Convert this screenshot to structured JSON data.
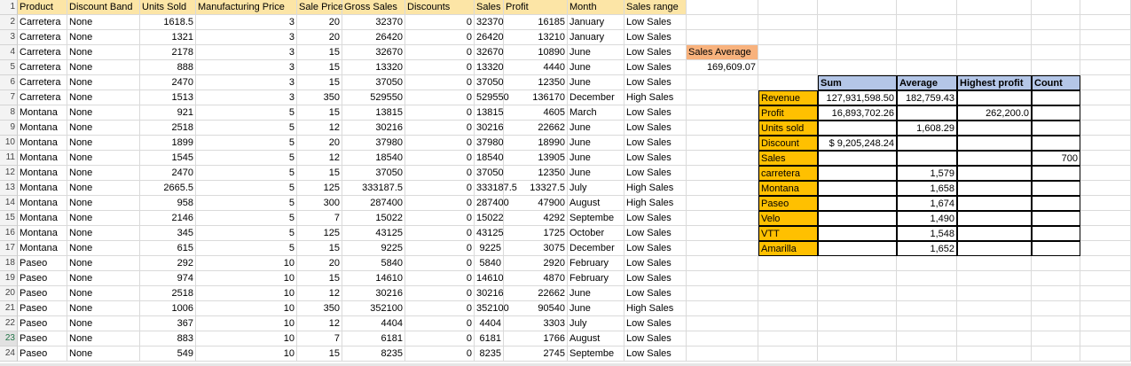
{
  "sheet": {
    "rows": [
      {
        "n": "1",
        "cells": [
          "Product",
          "Discount Band",
          "Units Sold",
          "Manufacturing Price",
          "Sale Price",
          "Gross Sales",
          "Discounts",
          "Sales",
          "Profit",
          "Month",
          "Sales range"
        ]
      },
      {
        "n": "2",
        "cells": [
          "Carretera",
          "None",
          "1618.5",
          "3",
          "20",
          "32370",
          "0",
          "32370",
          "16185",
          "January",
          "Low Sales"
        ]
      },
      {
        "n": "3",
        "cells": [
          "Carretera",
          "None",
          "1321",
          "3",
          "20",
          "26420",
          "0",
          "26420",
          "13210",
          "January",
          "Low Sales"
        ]
      },
      {
        "n": "4",
        "cells": [
          "Carretera",
          "None",
          "2178",
          "3",
          "15",
          "32670",
          "0",
          "32670",
          "10890",
          "June",
          "Low Sales"
        ]
      },
      {
        "n": "5",
        "cells": [
          "Carretera",
          "None",
          "888",
          "3",
          "15",
          "13320",
          "0",
          "13320",
          "4440",
          "June",
          "Low Sales"
        ]
      },
      {
        "n": "6",
        "cells": [
          "Carretera",
          "None",
          "2470",
          "3",
          "15",
          "37050",
          "0",
          "37050",
          "12350",
          "June",
          "Low Sales"
        ]
      },
      {
        "n": "7",
        "cells": [
          "Carretera",
          "None",
          "1513",
          "3",
          "350",
          "529550",
          "0",
          "529550",
          "136170",
          "December",
          "High Sales"
        ]
      },
      {
        "n": "8",
        "cells": [
          "Montana",
          "None",
          "921",
          "5",
          "15",
          "13815",
          "0",
          "13815",
          "4605",
          "March",
          "Low Sales"
        ]
      },
      {
        "n": "9",
        "cells": [
          "Montana",
          "None",
          "2518",
          "5",
          "12",
          "30216",
          "0",
          "30216",
          "22662",
          "June",
          "Low Sales"
        ]
      },
      {
        "n": "10",
        "cells": [
          "Montana",
          "None",
          "1899",
          "5",
          "20",
          "37980",
          "0",
          "37980",
          "18990",
          "June",
          "Low Sales"
        ]
      },
      {
        "n": "11",
        "cells": [
          "Montana",
          "None",
          "1545",
          "5",
          "12",
          "18540",
          "0",
          "18540",
          "13905",
          "June",
          "Low Sales"
        ]
      },
      {
        "n": "12",
        "cells": [
          "Montana",
          "None",
          "2470",
          "5",
          "15",
          "37050",
          "0",
          "37050",
          "12350",
          "June",
          "Low Sales"
        ]
      },
      {
        "n": "13",
        "cells": [
          "Montana",
          "None",
          "2665.5",
          "5",
          "125",
          "333187.5",
          "0",
          "333187.5",
          "13327.5",
          "July",
          "High Sales"
        ]
      },
      {
        "n": "14",
        "cells": [
          "Montana",
          "None",
          "958",
          "5",
          "300",
          "287400",
          "0",
          "287400",
          "47900",
          "August",
          "High Sales"
        ]
      },
      {
        "n": "15",
        "cells": [
          "Montana",
          "None",
          "2146",
          "5",
          "7",
          "15022",
          "0",
          "15022",
          "4292",
          "Septembe",
          "Low Sales"
        ]
      },
      {
        "n": "16",
        "cells": [
          "Montana",
          "None",
          "345",
          "5",
          "125",
          "43125",
          "0",
          "43125",
          "1725",
          "October",
          "Low Sales"
        ]
      },
      {
        "n": "17",
        "cells": [
          "Montana",
          "None",
          "615",
          "5",
          "15",
          "9225",
          "0",
          "9225",
          "3075",
          "December",
          "Low Sales"
        ]
      },
      {
        "n": "18",
        "cells": [
          "Paseo",
          "None",
          "292",
          "10",
          "20",
          "5840",
          "0",
          "5840",
          "2920",
          "February",
          "Low Sales"
        ]
      },
      {
        "n": "19",
        "cells": [
          "Paseo",
          "None",
          "974",
          "10",
          "15",
          "14610",
          "0",
          "14610",
          "4870",
          "February",
          "Low Sales"
        ]
      },
      {
        "n": "20",
        "cells": [
          "Paseo",
          "None",
          "2518",
          "10",
          "12",
          "30216",
          "0",
          "30216",
          "22662",
          "June",
          "Low Sales"
        ]
      },
      {
        "n": "21",
        "cells": [
          "Paseo",
          "None",
          "1006",
          "10",
          "350",
          "352100",
          "0",
          "352100",
          "90540",
          "June",
          "High Sales"
        ]
      },
      {
        "n": "22",
        "cells": [
          "Paseo",
          "None",
          "367",
          "10",
          "12",
          "4404",
          "0",
          "4404",
          "3303",
          "July",
          "Low Sales"
        ]
      },
      {
        "n": "23",
        "cells": [
          "Paseo",
          "None",
          "883",
          "10",
          "7",
          "6181",
          "0",
          "6181",
          "1766",
          "August",
          "Low Sales"
        ]
      },
      {
        "n": "24",
        "cells": [
          "Paseo",
          "None",
          "549",
          "10",
          "15",
          "8235",
          "0",
          "8235",
          "2745",
          "Septembe",
          "Low Sales"
        ]
      }
    ],
    "selected_row": "23"
  },
  "sales_average": {
    "label": "Sales Average",
    "value": "169,609.07"
  },
  "summary": {
    "headers": [
      "Sum",
      "Average",
      "Highest profit",
      "Count"
    ],
    "rows": [
      {
        "label": "Revenue",
        "sum": "127,931,598.50",
        "average": "182,759.43",
        "highest": "",
        "count": ""
      },
      {
        "label": "Profit",
        "sum": "16,893,702.26",
        "average": "",
        "highest": "262,200.0",
        "count": ""
      },
      {
        "label": "Units sold",
        "sum": "",
        "average": "1,608.29",
        "highest": "",
        "count": ""
      },
      {
        "label": "Discount",
        "sum": "$  9,205,248.24",
        "average": "",
        "highest": "",
        "count": ""
      },
      {
        "label": "Sales",
        "sum": "",
        "average": "",
        "highest": "",
        "count": "700"
      },
      {
        "label": "carretera",
        "sum": "",
        "average": "1,579",
        "highest": "",
        "count": ""
      },
      {
        "label": "Montana",
        "sum": "",
        "average": "1,658",
        "highest": "",
        "count": ""
      },
      {
        "label": "Paseo",
        "sum": "",
        "average": "1,674",
        "highest": "",
        "count": ""
      },
      {
        "label": "Velo",
        "sum": "",
        "average": "1,490",
        "highest": "",
        "count": ""
      },
      {
        "label": "VTT",
        "sum": "",
        "average": "1,548",
        "highest": "",
        "count": ""
      },
      {
        "label": "Amarilla",
        "sum": "",
        "average": "1,652",
        "highest": "",
        "count": ""
      }
    ]
  },
  "colors": {
    "header_fill": "#fce5a6",
    "avg_fill": "#f8b27d",
    "label_fill": "#ffc000",
    "summary_header_fill": "#b4c6e7"
  }
}
